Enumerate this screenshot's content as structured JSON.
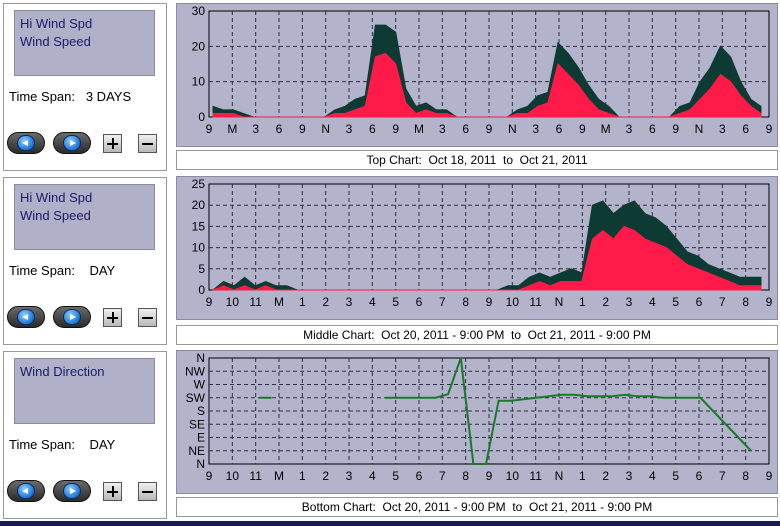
{
  "panels": [
    {
      "legend": [
        "Hi Wind Spd",
        "Wind Speed"
      ],
      "time_span_label": "Time Span:",
      "time_span_value": "3 DAYS",
      "caption": "Top Chart:  Oct 18, 2011  to  Oct 21, 2011"
    },
    {
      "legend": [
        "Hi Wind Spd",
        "Wind Speed"
      ],
      "time_span_label": "Time Span:",
      "time_span_value": "DAY",
      "caption": "Middle Chart:  Oct 20, 2011 - 9:00 PM  to  Oct 21, 2011 - 9:00 PM"
    },
    {
      "legend": [
        "Wind Direction"
      ],
      "time_span_label": "Time Span:",
      "time_span_value": "DAY",
      "caption": "Bottom Chart:  Oct 20, 2011 - 9:00 PM  to  Oct 21, 2011 - 9:00 PM"
    }
  ],
  "controls": {
    "back_icon": "left-arrow-icon",
    "forward_icon": "right-arrow-icon",
    "zoom_in_icon": "plus-icon",
    "zoom_out_icon": "minus-icon"
  },
  "colors": {
    "hi_wind": "#0e3a34",
    "wind_speed": "#ff1a4a",
    "wind_direction": "#1a7a2a",
    "plot_bg": "#b3b3cb",
    "grid": "#2e2e40"
  },
  "chart_data": [
    {
      "type": "area",
      "ylim": [
        0,
        30
      ],
      "yticks": [
        0,
        10,
        20,
        30
      ],
      "xticks": [
        "9",
        "M",
        "3",
        "6",
        "9",
        "N",
        "3",
        "6",
        "9",
        "M",
        "3",
        "6",
        "9",
        "N",
        "3",
        "6",
        "9",
        "M",
        "3",
        "6",
        "9",
        "N",
        "3",
        "6",
        "9"
      ],
      "series": [
        {
          "name": "Hi Wind Spd",
          "color": "#0e3a34",
          "values": [
            3,
            2,
            2,
            1,
            0,
            0,
            0,
            0,
            0,
            0,
            0,
            0,
            2,
            3,
            5,
            6,
            26,
            26,
            24,
            8,
            3,
            4,
            2,
            2,
            0,
            0,
            0,
            0,
            0,
            0,
            2,
            3,
            6,
            7,
            21,
            18,
            14,
            9,
            5,
            3,
            0,
            0,
            0,
            0,
            0,
            0,
            3,
            4,
            10,
            14,
            20,
            17,
            10,
            5,
            3
          ]
        },
        {
          "name": "Wind Speed",
          "color": "#ff1a4a",
          "values": [
            1,
            1,
            1,
            0,
            0,
            0,
            0,
            0,
            0,
            0,
            0,
            0,
            1,
            1,
            2,
            3,
            17,
            18,
            15,
            4,
            1,
            2,
            1,
            1,
            0,
            0,
            0,
            0,
            0,
            0,
            1,
            1,
            3,
            4,
            15,
            12,
            9,
            5,
            2,
            1,
            0,
            0,
            0,
            0,
            0,
            0,
            1,
            2,
            5,
            8,
            12,
            10,
            6,
            3,
            1
          ]
        }
      ]
    },
    {
      "type": "area",
      "ylim": [
        0,
        25
      ],
      "yticks": [
        0,
        5,
        10,
        15,
        20,
        25
      ],
      "xticks": [
        "9",
        "10",
        "11",
        "M",
        "1",
        "2",
        "3",
        "4",
        "5",
        "6",
        "7",
        "8",
        "9",
        "10",
        "11",
        "N",
        "1",
        "2",
        "3",
        "4",
        "5",
        "6",
        "7",
        "8",
        "9"
      ],
      "series": [
        {
          "name": "Hi Wind Spd",
          "color": "#0e3a34",
          "values": [
            0,
            2,
            1,
            3,
            1,
            2,
            1,
            1,
            0,
            0,
            0,
            0,
            0,
            0,
            0,
            0,
            0,
            0,
            0,
            0,
            0,
            0,
            0,
            0,
            0,
            0,
            0,
            0,
            1,
            1,
            3,
            4,
            3,
            4,
            5,
            4,
            20,
            21,
            18,
            20,
            21,
            18,
            17,
            15,
            12,
            9,
            8,
            6,
            5,
            4,
            3,
            3,
            3
          ]
        },
        {
          "name": "Wind Speed",
          "color": "#ff1a4a",
          "values": [
            0,
            1,
            0,
            1,
            0,
            1,
            0,
            0,
            0,
            0,
            0,
            0,
            0,
            0,
            0,
            0,
            0,
            0,
            0,
            0,
            0,
            0,
            0,
            0,
            0,
            0,
            0,
            0,
            0,
            0,
            1,
            2,
            1,
            2,
            2,
            2,
            12,
            14,
            12,
            15,
            14,
            12,
            11,
            10,
            8,
            6,
            5,
            4,
            3,
            2,
            1,
            1,
            1
          ]
        }
      ]
    },
    {
      "type": "line",
      "yticks": [
        "N",
        "NW",
        "W",
        "SW",
        "S",
        "SE",
        "E",
        "NE",
        "N"
      ],
      "xticks": [
        "9",
        "10",
        "11",
        "M",
        "1",
        "2",
        "3",
        "4",
        "5",
        "6",
        "7",
        "8",
        "9",
        "10",
        "11",
        "N",
        "1",
        "2",
        "3",
        "4",
        "5",
        "6",
        "7",
        "8",
        "9"
      ],
      "series": [
        {
          "name": "Wind Direction",
          "color": "#1a7a2a",
          "values": [
            null,
            225,
            null,
            225,
            225,
            null,
            null,
            null,
            null,
            null,
            null,
            null,
            null,
            225,
            225,
            225,
            225,
            225,
            237,
            360,
            0,
            0,
            215,
            215,
            220,
            225,
            230,
            235,
            235,
            230,
            230,
            230,
            235,
            230,
            230,
            225,
            225,
            225,
            225,
            180,
            135,
            90,
            45
          ]
        }
      ]
    }
  ]
}
